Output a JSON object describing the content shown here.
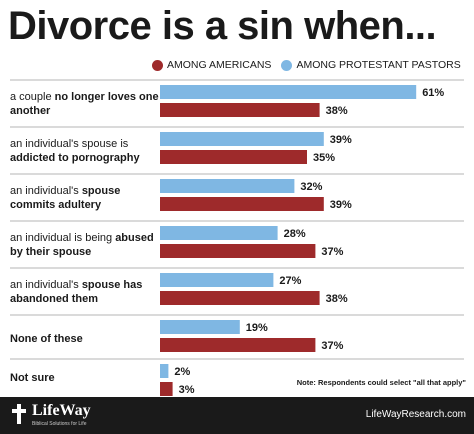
{
  "title": "Divorce is a sin when...",
  "colors": {
    "americans": "#9e2a2b",
    "pastors": "#7fb7e3",
    "rule": "#b5b5b5",
    "footer": "#1a1a1a"
  },
  "chart_data": {
    "type": "bar",
    "orientation": "horizontal",
    "title": "Divorce is a sin when...",
    "xlim": [
      0,
      100
    ],
    "unit": "%",
    "grid": false,
    "legend_position": "top-right",
    "categories": [
      "a couple no longer loves one another",
      "an individual's spouse is addicted to pornography",
      "an individual's spouse commits adultery",
      "an individual is being abused by their spouse",
      "an individual's spouse has abandoned them",
      "None of these",
      "Not sure"
    ],
    "series": [
      {
        "name": "AMONG PROTESTANT PASTORS",
        "values": [
          61,
          39,
          32,
          28,
          27,
          19,
          2
        ]
      },
      {
        "name": "AMONG AMERICANS",
        "values": [
          38,
          35,
          39,
          37,
          38,
          37,
          3
        ]
      }
    ],
    "note": "Note: Respondents could select \"all that apply\""
  },
  "category_labels": [
    {
      "plain": "a couple ",
      "bold": "no longer loves one another",
      "tail": ""
    },
    {
      "plain": "an individual's spouse is ",
      "bold": "addicted to pornography",
      "tail": ""
    },
    {
      "plain": "an individual's ",
      "bold": "spouse commits adultery",
      "tail": ""
    },
    {
      "plain": "an individual is being ",
      "bold": "abused by their spouse",
      "tail": ""
    },
    {
      "plain": "an individual's ",
      "bold": "spouse has abandoned them",
      "tail": ""
    },
    {
      "plain": "",
      "bold": "None of these",
      "tail": ""
    },
    {
      "plain": "",
      "bold": "Not sure",
      "tail": ""
    }
  ],
  "footer": {
    "logo": "LifeWay",
    "tagline": "Biblical Solutions for Life",
    "site": "LifeWayResearch.com"
  }
}
